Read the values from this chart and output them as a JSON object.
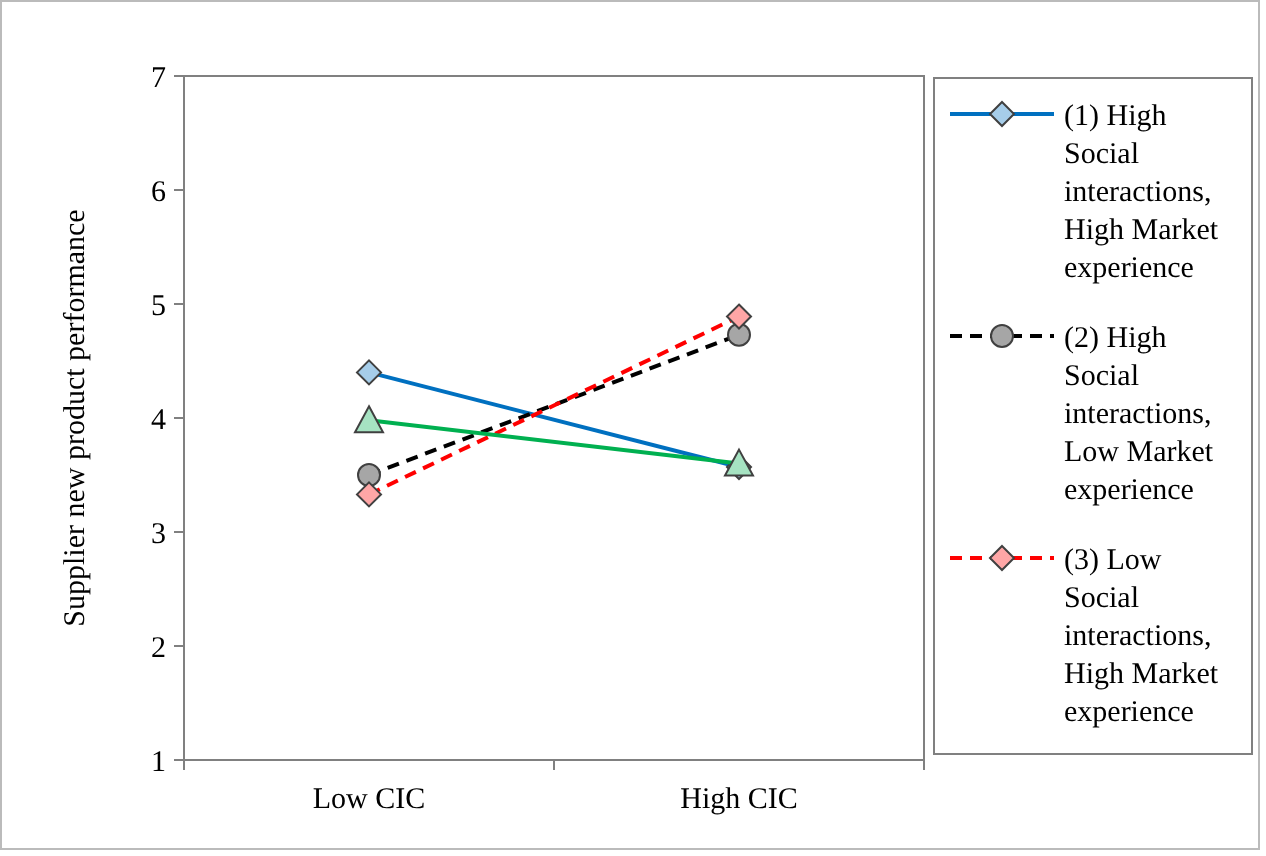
{
  "chart_data": {
    "type": "line",
    "ylabel": "Supplier new product performance",
    "categories": [
      "Low CIC",
      "High CIC"
    ],
    "series": [
      {
        "name": "(1) High Social interactions, High Market experience",
        "color": "#0070c0",
        "values": [
          4.4,
          3.57
        ],
        "marker": "diamond",
        "line_style": "solid"
      },
      {
        "name": "(2) High Social interactions, Low Market experience",
        "color": "#000000",
        "values": [
          3.5,
          4.73
        ],
        "marker": "circle",
        "line_style": "dashed"
      },
      {
        "name": "(3) Low Social interactions, High Market experience",
        "color": "#ff0000",
        "values": [
          3.33,
          4.89
        ],
        "marker": "diamond",
        "line_style": "dashed"
      },
      {
        "color": "#00b050",
        "values": [
          3.98,
          3.6
        ],
        "marker": "triangle",
        "line_style": "solid"
      }
    ],
    "ylim": [
      1,
      7
    ],
    "yticks": [
      1,
      2,
      3,
      4,
      5,
      6,
      7
    ],
    "grid": false,
    "legend": "right"
  }
}
